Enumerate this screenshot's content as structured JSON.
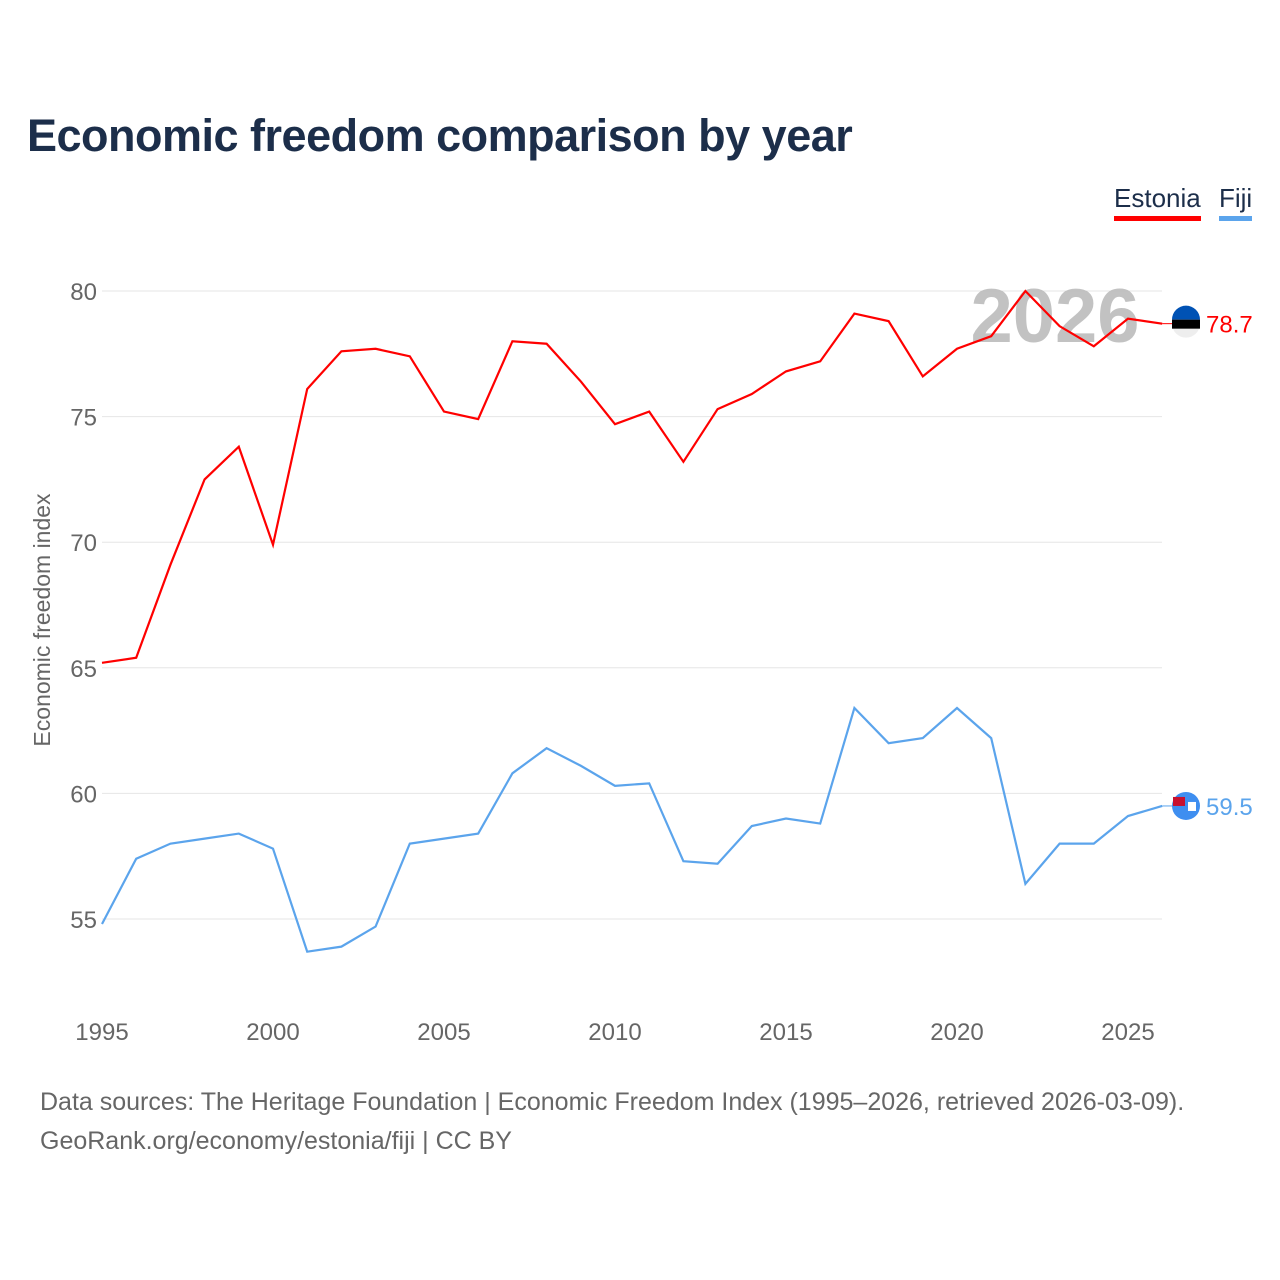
{
  "chart_data": {
    "type": "line",
    "title": "Economic freedom comparison by year",
    "ylabel": "Economic freedom index",
    "xlabel": "",
    "xlim": [
      1995,
      2026
    ],
    "ylim": [
      51.5,
      82
    ],
    "yticks": [
      55,
      60,
      65,
      70,
      75,
      80
    ],
    "xticks": [
      1995,
      2000,
      2005,
      2010,
      2015,
      2020,
      2025
    ],
    "watermark_year": "2026",
    "legend_position": "top-right",
    "x": [
      1995,
      1996,
      1997,
      1998,
      1999,
      2000,
      2001,
      2002,
      2003,
      2004,
      2005,
      2006,
      2007,
      2008,
      2009,
      2010,
      2011,
      2012,
      2013,
      2014,
      2015,
      2016,
      2017,
      2018,
      2019,
      2020,
      2021,
      2022,
      2023,
      2024,
      2025,
      2026
    ],
    "series": [
      {
        "name": "Estonia",
        "color": "#ff0000",
        "end_label": "78.7",
        "values": [
          65.2,
          65.4,
          69.1,
          72.5,
          73.8,
          69.9,
          76.1,
          77.6,
          77.7,
          77.4,
          75.2,
          74.9,
          78.0,
          77.9,
          76.4,
          74.7,
          75.2,
          73.2,
          75.3,
          75.9,
          76.8,
          77.2,
          79.1,
          78.8,
          76.6,
          77.7,
          78.2,
          80.0,
          78.6,
          77.8,
          78.9,
          78.7
        ]
      },
      {
        "name": "Fiji",
        "color": "#5ba4ec",
        "end_label": "59.5",
        "values": [
          54.8,
          57.4,
          58.0,
          58.2,
          58.4,
          57.8,
          53.7,
          53.9,
          54.7,
          58.0,
          58.2,
          58.4,
          60.8,
          61.8,
          61.1,
          60.3,
          60.4,
          57.3,
          57.2,
          58.7,
          59.0,
          58.8,
          63.4,
          62.0,
          62.2,
          63.4,
          62.2,
          56.4,
          58.0,
          58.0,
          59.1,
          59.5
        ]
      }
    ]
  },
  "footer": {
    "sources": "Data sources: The Heritage Foundation | Economic Freedom Index (1995–2026, retrieved 2026-03-09).",
    "credit": "GeoRank.org/economy/estonia/fiji | CC BY"
  }
}
